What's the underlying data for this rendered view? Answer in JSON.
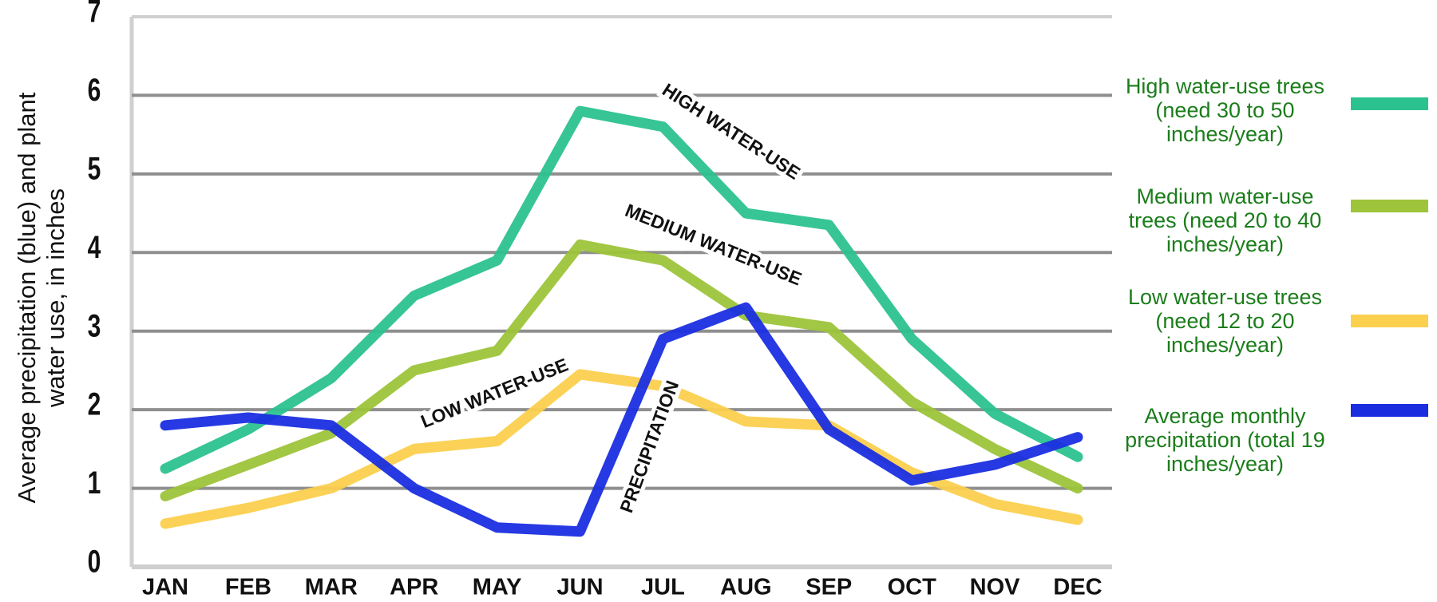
{
  "chart_data": {
    "type": "line",
    "y_label": "Average precipitation (blue) and plant water use, in inches",
    "categories": [
      "JAN",
      "FEB",
      "MAR",
      "APR",
      "MAY",
      "JUN",
      "JUL",
      "AUG",
      "SEP",
      "OCT",
      "NOV",
      "DEC"
    ],
    "series": [
      {
        "name": "High water-use trees (need 30 to 50 inches/year)",
        "color": "#2cc28f",
        "values": [
          1.25,
          1.75,
          2.4,
          3.45,
          3.9,
          5.8,
          5.6,
          4.5,
          4.35,
          2.9,
          1.95,
          1.4
        ]
      },
      {
        "name": "Medium water-use trees (need 20 to 40 inches/year)",
        "color": "#9dc43a",
        "values": [
          0.9,
          1.3,
          1.7,
          2.5,
          2.75,
          4.1,
          3.9,
          3.2,
          3.05,
          2.1,
          1.5,
          1.0
        ]
      },
      {
        "name": "Low water-use trees (need 12 to 20 inches/year)",
        "color": "#fbd04e",
        "values": [
          0.55,
          0.75,
          1.0,
          1.5,
          1.6,
          2.45,
          2.3,
          1.85,
          1.8,
          1.2,
          0.8,
          0.6
        ]
      },
      {
        "name": "Average monthly precipitation (total 19 inches/year)",
        "color": "#1a2ee0",
        "values": [
          1.8,
          1.9,
          1.8,
          1.0,
          0.5,
          0.45,
          2.9,
          3.3,
          1.75,
          1.1,
          1.3,
          1.65
        ]
      }
    ],
    "annotations": [
      "HIGH WATER-USE",
      "MEDIUM WATER-USE",
      "LOW WATER-USE",
      "PRECIPITATION"
    ],
    "ylim": [
      0,
      7
    ],
    "yticks": [
      0,
      1,
      2,
      3,
      4,
      5,
      6,
      7
    ],
    "grid": true
  }
}
